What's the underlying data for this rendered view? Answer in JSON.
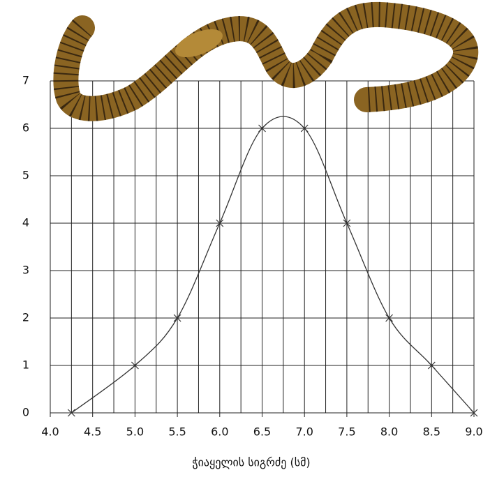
{
  "chart_data": {
    "type": "line",
    "x_label": "ჭიაყელის სიგრძე (სმ)",
    "series": [
      {
        "color": "#333333",
        "x": [
          4.25,
          5.0,
          5.5,
          6.0,
          6.5,
          7.0,
          7.5,
          8.0,
          8.5,
          9.0
        ],
        "values": [
          0,
          1,
          2,
          4,
          6,
          6,
          4,
          2,
          1,
          0
        ]
      }
    ],
    "xlim": [
      4,
      9
    ],
    "xticks": [
      {
        "value": 4,
        "label": "4.0"
      },
      {
        "value": 4.5,
        "label": "4.5"
      },
      {
        "value": 5,
        "label": "5.0"
      },
      {
        "value": 5.5,
        "label": "5.5"
      },
      {
        "value": 6,
        "label": "6.0"
      },
      {
        "value": 6.5,
        "label": "6.5"
      },
      {
        "value": 7,
        "label": "7.0"
      },
      {
        "value": 7.5,
        "label": "7.5"
      },
      {
        "value": 8,
        "label": "8.0"
      },
      {
        "value": 8.5,
        "label": "8.5"
      },
      {
        "value": 9,
        "label": "9.0"
      }
    ],
    "ylim": [
      0,
      7
    ],
    "yticks": [
      0,
      1,
      2,
      3,
      4,
      5,
      6,
      7
    ],
    "grid": true,
    "x_minor_grid": true,
    "smooth": true
  }
}
